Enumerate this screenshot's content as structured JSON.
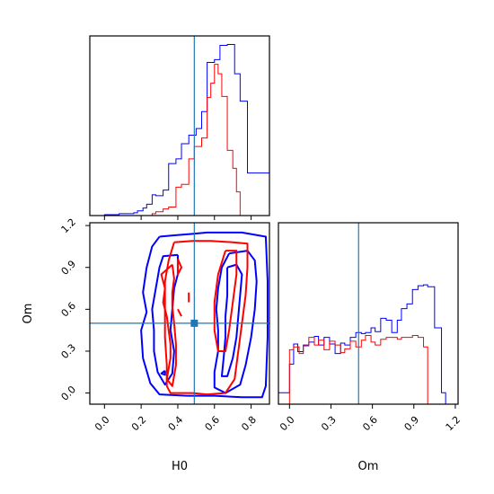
{
  "chart_data": {
    "type": "corner",
    "parameters": [
      "H0",
      "Om"
    ],
    "truths": {
      "H0": 0.49,
      "Om": 0.5
    },
    "colors": {
      "blue": "#0000ff",
      "red": "#ff0000",
      "truth": "#1f77b4",
      "frame": "#000000"
    },
    "hist_H0": {
      "xlim": [
        -0.08,
        0.9
      ],
      "ylim": [
        0,
        190
      ],
      "xticks": [
        0.0,
        0.2,
        0.4,
        0.6,
        0.8
      ],
      "xticklabels_shown": false,
      "blue": {
        "edges": [
          -0.08,
          0.0,
          0.08,
          0.16,
          0.18,
          0.21,
          0.23,
          0.26,
          0.28,
          0.32,
          0.35,
          0.39,
          0.42,
          0.46,
          0.5,
          0.53,
          0.56,
          0.6,
          0.63,
          0.67,
          0.71,
          0.74,
          0.78,
          0.9
        ],
        "values": [
          0,
          1,
          2,
          3,
          5,
          8,
          12,
          22,
          21,
          27,
          55,
          60,
          76,
          85,
          92,
          110,
          162,
          165,
          180,
          181,
          150,
          121,
          45
        ]
      },
      "red": {
        "edges": [
          0.08,
          0.26,
          0.28,
          0.32,
          0.35,
          0.39,
          0.42,
          0.46,
          0.49,
          0.53,
          0.56,
          0.58,
          0.6,
          0.62,
          0.64,
          0.67,
          0.7,
          0.72,
          0.74,
          0.9
        ],
        "values": [
          0,
          2,
          4,
          7,
          9,
          30,
          33,
          60,
          73,
          82,
          125,
          140,
          160,
          150,
          126,
          69,
          50,
          25,
          0
        ]
      }
    },
    "hist_Om": {
      "xlim": [
        -0.08,
        1.22
      ],
      "ylim": [
        0,
        190
      ],
      "xticks": [
        0.0,
        0.3,
        0.6,
        0.9,
        1.2
      ],
      "xticklabels": [
        "0.0",
        "0.3",
        "0.6",
        "0.9",
        "1.2"
      ],
      "xlabel": "Om",
      "blue": {
        "edges": [
          -0.08,
          0.0,
          0.03,
          0.06,
          0.1,
          0.14,
          0.18,
          0.21,
          0.25,
          0.29,
          0.33,
          0.37,
          0.4,
          0.44,
          0.48,
          0.52,
          0.55,
          0.59,
          0.62,
          0.66,
          0.7,
          0.74,
          0.78,
          0.81,
          0.85,
          0.89,
          0.93,
          0.97,
          1.0,
          1.05,
          1.1,
          1.13,
          1.22
        ],
        "values": [
          12,
          42,
          63,
          55,
          62,
          65,
          71,
          62,
          70,
          63,
          53,
          64,
          62,
          70,
          75,
          74,
          75,
          80,
          76,
          90,
          88,
          75,
          88,
          100,
          105,
          120,
          124,
          125,
          123,
          80,
          12,
          0
        ]
      },
      "red": {
        "edges": [
          0.0,
          0.03,
          0.07,
          0.1,
          0.14,
          0.18,
          0.21,
          0.25,
          0.29,
          0.33,
          0.37,
          0.4,
          0.44,
          0.48,
          0.52,
          0.55,
          0.59,
          0.62,
          0.66,
          0.7,
          0.74,
          0.78,
          0.81,
          0.85,
          0.89,
          0.93,
          0.97,
          1.0
        ],
        "values": [
          57,
          60,
          53,
          61,
          70,
          62,
          67,
          57,
          66,
          62,
          54,
          58,
          66,
          60,
          67,
          72,
          65,
          62,
          68,
          70,
          70,
          68,
          70,
          70,
          72,
          70,
          60
        ]
      }
    },
    "contour_H0_Om": {
      "xlim": [
        -0.08,
        0.9
      ],
      "ylim": [
        -0.08,
        1.22
      ],
      "xticks": [
        0.0,
        0.2,
        0.4,
        0.6,
        0.8
      ],
      "xticklabels": [
        "0.0",
        "0.2",
        "0.4",
        "0.6",
        "0.8"
      ],
      "yticks": [
        0.0,
        0.3,
        0.6,
        0.9,
        1.2
      ],
      "yticklabels": [
        "0.0",
        "0.3",
        "0.6",
        "0.9",
        "1.2"
      ],
      "xlabel": "H0",
      "ylabel": "Om",
      "contours": [
        {
          "color": "blue",
          "points": [
            [
              0.3,
              1.12
            ],
            [
              0.38,
              1.13
            ],
            [
              0.48,
              1.14
            ],
            [
              0.56,
              1.15
            ],
            [
              0.65,
              1.15
            ],
            [
              0.75,
              1.15
            ],
            [
              0.88,
              1.12
            ],
            [
              0.89,
              0.8
            ],
            [
              0.89,
              0.4
            ],
            [
              0.88,
              0.05
            ],
            [
              0.86,
              -0.03
            ],
            [
              0.75,
              -0.03
            ],
            [
              0.6,
              -0.02
            ],
            [
              0.45,
              -0.02
            ],
            [
              0.3,
              -0.01
            ],
            [
              0.25,
              0.07
            ],
            [
              0.21,
              0.25
            ],
            [
              0.2,
              0.45
            ],
            [
              0.23,
              0.58
            ],
            [
              0.21,
              0.72
            ],
            [
              0.23,
              0.9
            ],
            [
              0.26,
              1.05
            ],
            [
              0.3,
              1.12
            ]
          ]
        },
        {
          "color": "blue",
          "points": [
            [
              0.4,
              0.99
            ],
            [
              0.32,
              0.98
            ],
            [
              0.3,
              0.9
            ],
            [
              0.28,
              0.75
            ],
            [
              0.26,
              0.6
            ],
            [
              0.27,
              0.45
            ],
            [
              0.27,
              0.3
            ],
            [
              0.29,
              0.15
            ],
            [
              0.33,
              0.06
            ],
            [
              0.37,
              0.14
            ],
            [
              0.38,
              0.3
            ],
            [
              0.36,
              0.45
            ],
            [
              0.37,
              0.6
            ],
            [
              0.38,
              0.75
            ],
            [
              0.4,
              0.85
            ],
            [
              0.4,
              0.99
            ]
          ]
        },
        {
          "color": "blue",
          "points": [
            [
              0.68,
              1.0
            ],
            [
              0.78,
              1.02
            ],
            [
              0.82,
              0.95
            ],
            [
              0.83,
              0.8
            ],
            [
              0.82,
              0.6
            ],
            [
              0.8,
              0.4
            ],
            [
              0.77,
              0.2
            ],
            [
              0.74,
              0.06
            ],
            [
              0.66,
              0.0
            ],
            [
              0.6,
              0.04
            ],
            [
              0.6,
              0.15
            ],
            [
              0.62,
              0.3
            ],
            [
              0.62,
              0.45
            ],
            [
              0.61,
              0.6
            ],
            [
              0.62,
              0.75
            ],
            [
              0.64,
              0.9
            ],
            [
              0.68,
              1.0
            ]
          ]
        },
        {
          "color": "blue",
          "points": [
            [
              0.67,
              0.9
            ],
            [
              0.72,
              0.92
            ],
            [
              0.75,
              0.85
            ],
            [
              0.74,
              0.7
            ],
            [
              0.73,
              0.55
            ],
            [
              0.72,
              0.4
            ],
            [
              0.7,
              0.25
            ],
            [
              0.67,
              0.12
            ],
            [
              0.64,
              0.12
            ],
            [
              0.65,
              0.25
            ],
            [
              0.66,
              0.4
            ],
            [
              0.66,
              0.55
            ],
            [
              0.67,
              0.7
            ],
            [
              0.67,
              0.9
            ]
          ]
        },
        {
          "color": "blue",
          "points": [
            [
              0.33,
              0.16
            ],
            [
              0.31,
              0.14
            ],
            [
              0.33,
              0.13
            ],
            [
              0.33,
              0.16
            ]
          ]
        },
        {
          "color": "red",
          "points": [
            [
              0.38,
              1.08
            ],
            [
              0.48,
              1.09
            ],
            [
              0.58,
              1.09
            ],
            [
              0.7,
              1.08
            ],
            [
              0.78,
              1.07
            ],
            [
              0.78,
              0.9
            ],
            [
              0.77,
              0.7
            ],
            [
              0.75,
              0.5
            ],
            [
              0.73,
              0.3
            ],
            [
              0.71,
              0.1
            ],
            [
              0.66,
              0.0
            ],
            [
              0.56,
              -0.01
            ],
            [
              0.48,
              0.0
            ],
            [
              0.42,
              0.0
            ],
            [
              0.36,
              0.0
            ],
            [
              0.34,
              0.05
            ],
            [
              0.34,
              0.2
            ],
            [
              0.33,
              0.4
            ],
            [
              0.33,
              0.6
            ],
            [
              0.33,
              0.8
            ],
            [
              0.35,
              0.95
            ],
            [
              0.38,
              1.08
            ]
          ]
        },
        {
          "color": "red",
          "points": [
            [
              0.66,
              1.02
            ],
            [
              0.72,
              1.02
            ],
            [
              0.72,
              0.85
            ],
            [
              0.7,
              0.65
            ],
            [
              0.68,
              0.45
            ],
            [
              0.66,
              0.3
            ],
            [
              0.62,
              0.3
            ],
            [
              0.6,
              0.45
            ],
            [
              0.6,
              0.65
            ],
            [
              0.62,
              0.85
            ],
            [
              0.66,
              1.02
            ]
          ]
        },
        {
          "color": "red",
          "points": [
            [
              0.37,
              0.92
            ],
            [
              0.31,
              0.85
            ],
            [
              0.33,
              0.75
            ],
            [
              0.32,
              0.65
            ],
            [
              0.34,
              0.55
            ],
            [
              0.35,
              0.45
            ],
            [
              0.36,
              0.35
            ],
            [
              0.36,
              0.25
            ],
            [
              0.34,
              0.1
            ],
            [
              0.37,
              0.05
            ],
            [
              0.39,
              0.2
            ],
            [
              0.39,
              0.35
            ],
            [
              0.38,
              0.5
            ],
            [
              0.37,
              0.62
            ],
            [
              0.37,
              0.72
            ],
            [
              0.38,
              0.82
            ],
            [
              0.37,
              0.92
            ]
          ]
        },
        {
          "color": "red",
          "points": [
            [
              0.4,
              0.96
            ],
            [
              0.42,
              0.9
            ],
            [
              0.4,
              0.85
            ],
            [
              0.4,
              0.96
            ]
          ]
        },
        {
          "color": "red",
          "points": [
            [
              0.46,
              0.72
            ],
            [
              0.46,
              0.65
            ]
          ]
        },
        {
          "color": "red",
          "points": [
            [
              0.4,
              0.6
            ],
            [
              0.42,
              0.55
            ]
          ]
        }
      ]
    }
  }
}
